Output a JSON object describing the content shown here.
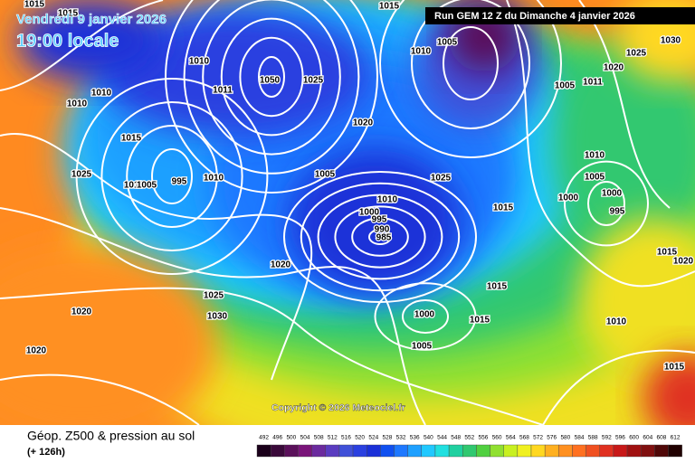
{
  "header": {
    "valid_date": "Vendredi 9 janvier 2026",
    "local_time": "19:00 locale",
    "run": "Run GEM 12 Z du Dimanche 4 janvier 2026"
  },
  "copyright": "Copyright © 2026 Meteociel.fr",
  "legend": {
    "title": "Géop. Z500 & pression au sol",
    "lead": "(+ 126h)",
    "scale": [
      {
        "value": "492",
        "color": "#1a001a"
      },
      {
        "value": "496",
        "color": "#3a0a3a"
      },
      {
        "value": "500",
        "color": "#5a105a"
      },
      {
        "value": "504",
        "color": "#7a147a"
      },
      {
        "value": "508",
        "color": "#6b2a9e"
      },
      {
        "value": "512",
        "color": "#5a3cc0"
      },
      {
        "value": "516",
        "color": "#4050d8"
      },
      {
        "value": "520",
        "color": "#2a40e0"
      },
      {
        "value": "524",
        "color": "#1a30d8"
      },
      {
        "value": "528",
        "color": "#1050f0"
      },
      {
        "value": "532",
        "color": "#1e78ff"
      },
      {
        "value": "536",
        "color": "#1ea0ff"
      },
      {
        "value": "540",
        "color": "#20c8ff"
      },
      {
        "value": "544",
        "color": "#20e0e0"
      },
      {
        "value": "548",
        "color": "#20d0a0"
      },
      {
        "value": "552",
        "color": "#30c870"
      },
      {
        "value": "556",
        "color": "#50d040"
      },
      {
        "value": "560",
        "color": "#90e030"
      },
      {
        "value": "564",
        "color": "#c8f020"
      },
      {
        "value": "568",
        "color": "#f0f020"
      },
      {
        "value": "572",
        "color": "#ffd820"
      },
      {
        "value": "576",
        "color": "#ffb020"
      },
      {
        "value": "580",
        "color": "#ff9020"
      },
      {
        "value": "584",
        "color": "#ff7020"
      },
      {
        "value": "588",
        "color": "#f05020"
      },
      {
        "value": "592",
        "color": "#e03020"
      },
      {
        "value": "596",
        "color": "#c81818"
      },
      {
        "value": "600",
        "color": "#a01010"
      },
      {
        "value": "604",
        "color": "#801010"
      },
      {
        "value": "608",
        "color": "#500808"
      },
      {
        "value": "612",
        "color": "#200000"
      }
    ]
  },
  "isobar_labels": [
    "1015",
    "1015",
    "1010",
    "1010",
    "1010",
    "1015",
    "1025",
    "995",
    "1010",
    "1005",
    "1010",
    "1050",
    "1025",
    "1011",
    "1020",
    "1005",
    "1010",
    "1000",
    "995",
    "990",
    "985",
    "1025",
    "1015",
    "1010",
    "1005",
    "1015",
    "1005",
    "1020",
    "1010",
    "1005",
    "1000",
    "995",
    "1000",
    "1015",
    "1020",
    "1020",
    "1025",
    "1030",
    "1020",
    "1020",
    "1015",
    "1015",
    "1000",
    "1005",
    "1010",
    "1015",
    "1030",
    "1025",
    "1011"
  ]
}
